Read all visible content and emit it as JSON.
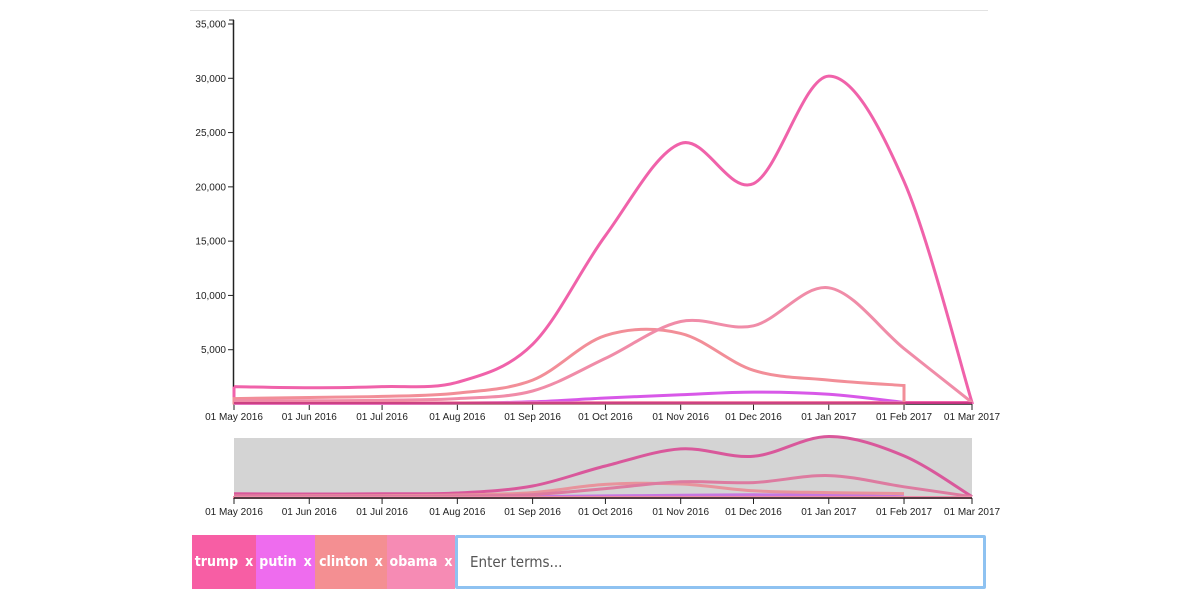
{
  "chart_data": {
    "type": "line",
    "title": "",
    "xlabel": "",
    "ylabel": "",
    "x": [
      "2016-05-01",
      "2016-06-01",
      "2016-07-01",
      "2016-08-01",
      "2016-09-01",
      "2016-10-01",
      "2016-11-01",
      "2016-12-01",
      "2017-01-01",
      "2017-02-01",
      "2017-03-01"
    ],
    "ylim": [
      0,
      35000
    ],
    "yticks": [
      5000,
      10000,
      15000,
      20000,
      25000,
      30000,
      35000
    ],
    "ytick_labels": [
      "5,000",
      "10,000",
      "15,000",
      "20,000",
      "25,000",
      "30,000",
      "35,000"
    ],
    "xtick_labels": [
      "01 May 2016",
      "01 Jun 2016",
      "01 Jul 2016",
      "01 Aug 2016",
      "01 Sep 2016",
      "01 Oct 2016",
      "01 Nov 2016",
      "01 Dec 2016",
      "01 Jan 2017",
      "01 Feb 2017",
      "01 Mar 2017"
    ],
    "grid": false,
    "series": [
      {
        "name": "trump",
        "color": "#f062aa",
        "values": [
          1600,
          1500,
          1600,
          2000,
          5500,
          15500,
          24000,
          20300,
          30200,
          20500,
          150
        ]
      },
      {
        "name": "putin",
        "color": "#d858e8",
        "values": [
          50,
          50,
          50,
          80,
          200,
          550,
          850,
          1100,
          900,
          150,
          null
        ]
      },
      {
        "name": "clinton",
        "color": "#f28e98",
        "values": [
          500,
          600,
          700,
          1000,
          2200,
          6300,
          6500,
          3100,
          2200,
          1700,
          null
        ]
      },
      {
        "name": "obama",
        "color": "#f08ca8",
        "values": [
          300,
          300,
          350,
          500,
          1200,
          4200,
          7600,
          7200,
          10700,
          5100,
          150
        ]
      }
    ],
    "brush": {
      "from": "2016-05-01",
      "to": "2017-03-01"
    }
  },
  "terms": [
    {
      "label": "trump",
      "remove": "x",
      "color": "#f75ea4"
    },
    {
      "label": "putin",
      "remove": "x",
      "color": "#ee6cee"
    },
    {
      "label": "clinton",
      "remove": "x",
      "color": "#f48f92"
    },
    {
      "label": "obama",
      "remove": "x",
      "color": "#f68bb4"
    }
  ],
  "search": {
    "placeholder": "Enter terms..."
  }
}
